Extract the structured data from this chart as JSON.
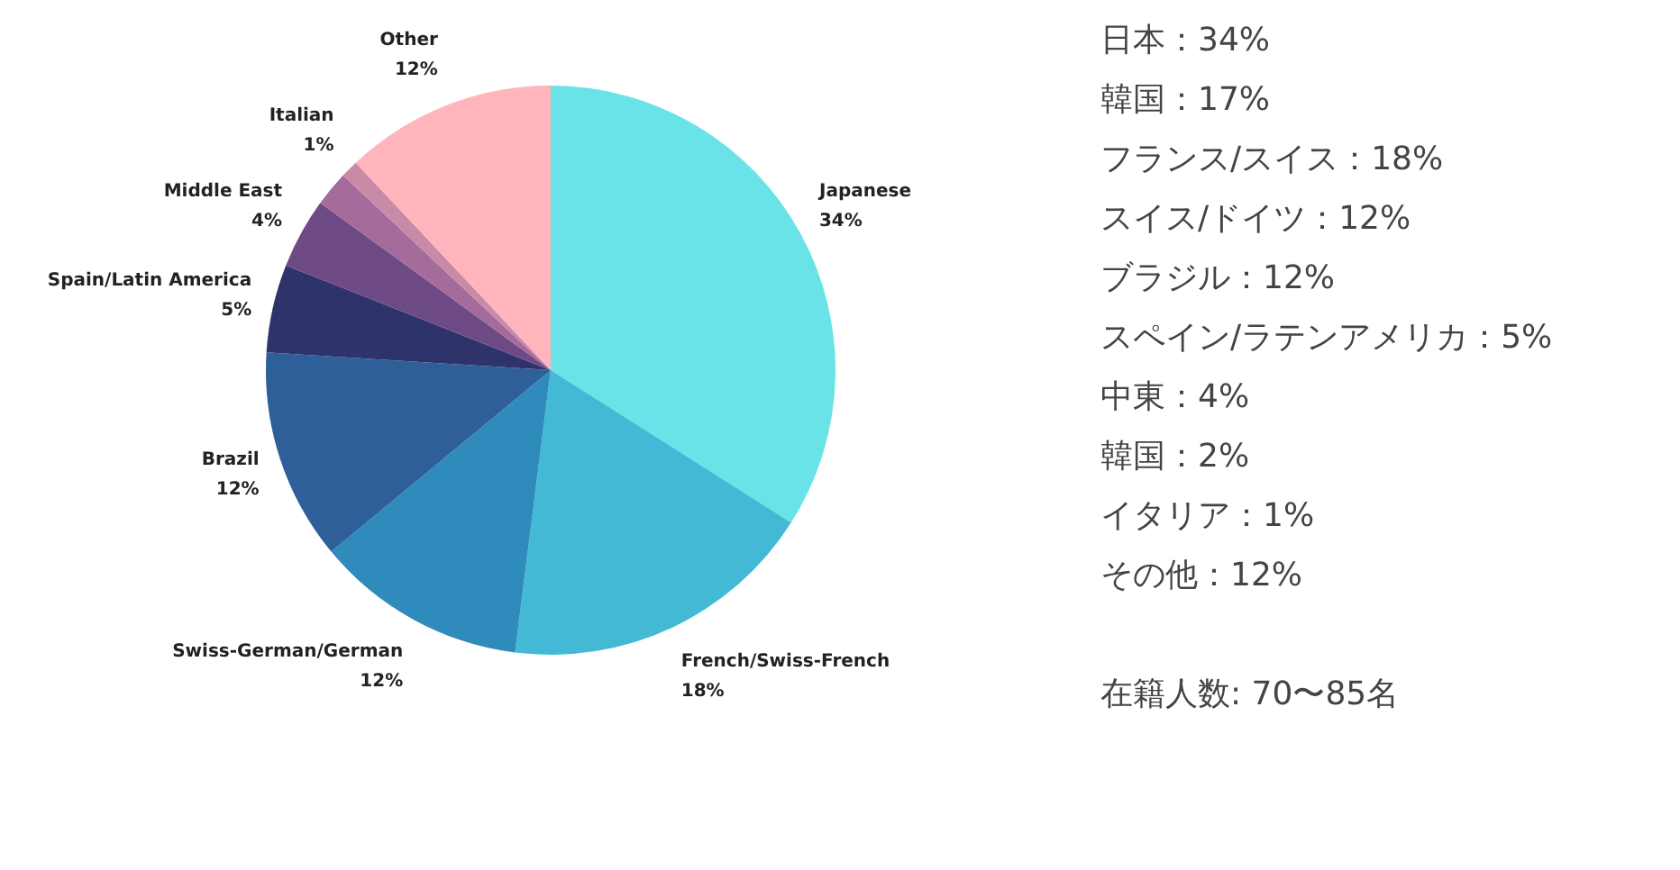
{
  "chart_data": {
    "type": "pie",
    "categories": [
      "Japanese",
      "French/Swiss-French",
      "Swiss-German/German",
      "Brazil",
      "Spain/Latin America",
      "Middle East",
      null,
      "Italian",
      "Other"
    ],
    "values": [
      34,
      18,
      12,
      12,
      5,
      4,
      2,
      1,
      12
    ],
    "value_labels": [
      "34%",
      "18%",
      "12%",
      "12%",
      "5%",
      "4%",
      null,
      "1%",
      "12%"
    ],
    "colors": [
      "#6ae3e8",
      "#44b9d6",
      "#2e8bbb",
      "#2e5f98",
      "#2f336b",
      "#6e4a85",
      "#a46b9b",
      "#c98aa8",
      "#ffb5bb"
    ],
    "annotations": [
      "日本：34%",
      "韓国：17%",
      "フランス/スイス：18%",
      "スイス/ドイツ：12%",
      "ブラジル：12%",
      "スペイン/ラテンアメリカ：5%",
      "中東：4%",
      "韓国：2%",
      "イタリア：1%",
      "その他：12%",
      "在籍人数: 70〜85名"
    ]
  }
}
